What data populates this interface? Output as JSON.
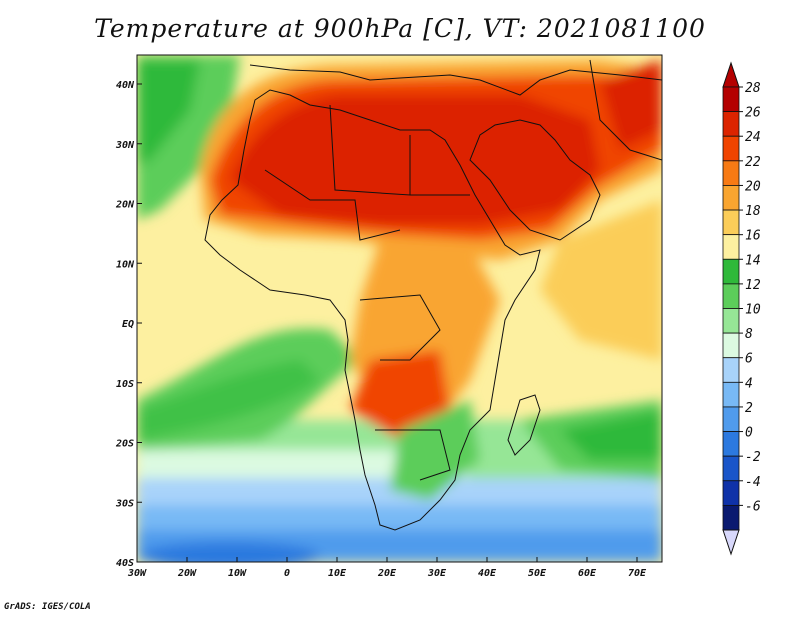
{
  "title": "Temperature at 900hPa [C], VT: 2021081100",
  "credit": "GrADS: IGES/COLA",
  "lon_ticks": [
    "30W",
    "20W",
    "10W",
    "0",
    "10E",
    "20E",
    "30E",
    "40E",
    "50E",
    "60E",
    "70E"
  ],
  "lat_ticks": [
    "40N",
    "30N",
    "20N",
    "10N",
    "EQ",
    "10S",
    "20S",
    "30S",
    "40S"
  ],
  "colorbar": {
    "labels": [
      "28",
      "26",
      "24",
      "22",
      "20",
      "18",
      "16",
      "14",
      "12",
      "10",
      "8",
      "6",
      "4",
      "2",
      "0",
      "-2",
      "-4",
      "-6"
    ],
    "colors": [
      "#b40000",
      "#dc2400",
      "#f04400",
      "#f77a14",
      "#f9a530",
      "#fbcd59",
      "#fdf0a0",
      "#2fb93a",
      "#5ccd5a",
      "#96e696",
      "#dcfae1",
      "#a8d3fa",
      "#78b9f5",
      "#509bec",
      "#2c79df",
      "#1955c9",
      "#0f32a8",
      "#0a1a70"
    ]
  }
}
